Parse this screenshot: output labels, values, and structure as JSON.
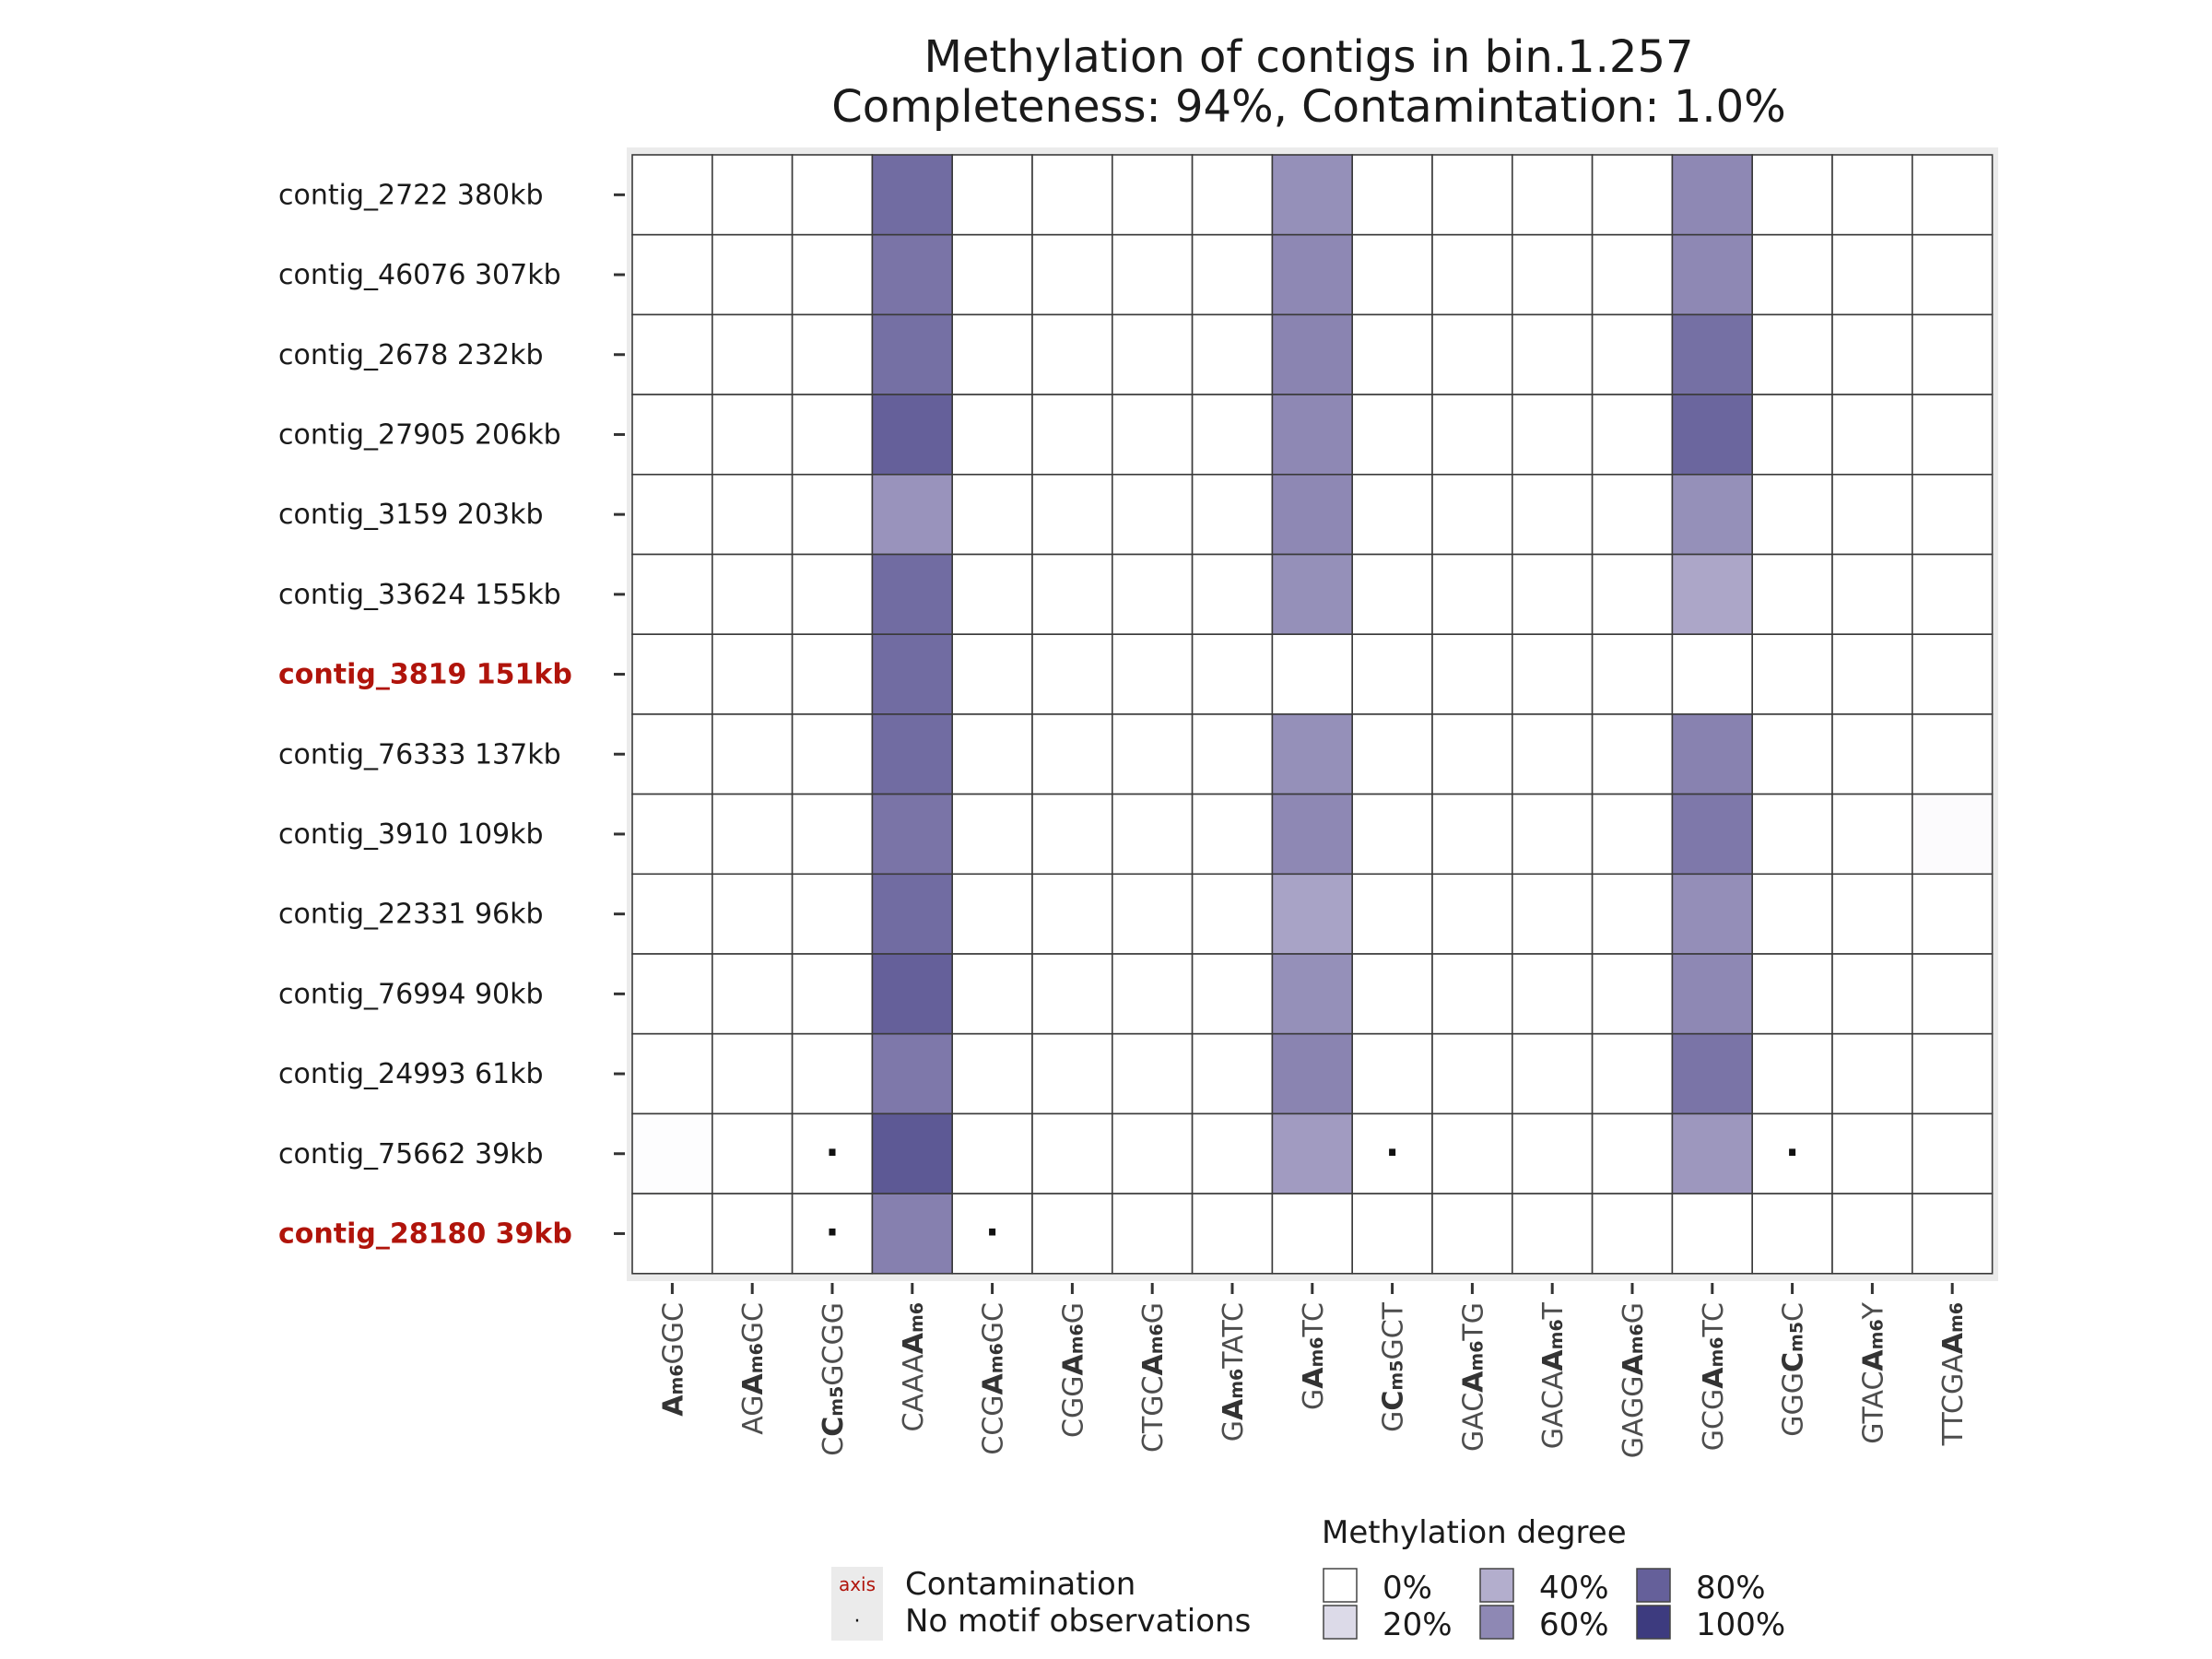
{
  "chart_data": {
    "type": "heatmap",
    "title": "Methylation of contigs in bin.1.257",
    "subtitle": "Completeness:  94%, Contamintation: 1.0%",
    "ylabels": [
      "contig_2722 380kb",
      "contig_46076 307kb",
      "contig_2678 232kb",
      "contig_27905 206kb",
      "contig_3159 203kb",
      "contig_33624 155kb",
      "contig_3819 151kb",
      "contig_76333 137kb",
      "contig_3910 109kb",
      "contig_22331 96kb",
      "contig_76994 90kb",
      "contig_24993 61kb",
      "contig_75662 39kb",
      "contig_28180 39kb"
    ],
    "contaminated_rows": [
      "contig_3819 151kb",
      "contig_28180 39kb"
    ],
    "xlabels": [
      [
        {
          "t": "A",
          "b": true
        },
        {
          "t": "m6",
          "s": true
        },
        {
          "t": "GGC"
        }
      ],
      [
        {
          "t": "AG"
        },
        {
          "t": "A",
          "b": true
        },
        {
          "t": "m6",
          "s": true
        },
        {
          "t": "GC"
        }
      ],
      [
        {
          "t": "C"
        },
        {
          "t": "C",
          "b": true
        },
        {
          "t": "m5",
          "s": true
        },
        {
          "t": "GCGG"
        }
      ],
      [
        {
          "t": "CAAA"
        },
        {
          "t": "A",
          "b": true
        },
        {
          "t": "m6",
          "s": true
        }
      ],
      [
        {
          "t": "CCG"
        },
        {
          "t": "A",
          "b": true
        },
        {
          "t": "m6",
          "s": true
        },
        {
          "t": "GC"
        }
      ],
      [
        {
          "t": "CGG"
        },
        {
          "t": "A",
          "b": true
        },
        {
          "t": "m6",
          "s": true
        },
        {
          "t": "G"
        }
      ],
      [
        {
          "t": "CTGC"
        },
        {
          "t": "A",
          "b": true
        },
        {
          "t": "m6",
          "s": true
        },
        {
          "t": "G"
        }
      ],
      [
        {
          "t": "G"
        },
        {
          "t": "A",
          "b": true
        },
        {
          "t": "m6",
          "s": true
        },
        {
          "t": "TATC"
        }
      ],
      [
        {
          "t": "G"
        },
        {
          "t": "A",
          "b": true
        },
        {
          "t": "m6",
          "s": true
        },
        {
          "t": "TC"
        }
      ],
      [
        {
          "t": "G"
        },
        {
          "t": "C",
          "b": true
        },
        {
          "t": "m5",
          "s": true
        },
        {
          "t": "GCT"
        }
      ],
      [
        {
          "t": "GAC"
        },
        {
          "t": "A",
          "b": true
        },
        {
          "t": "m6",
          "s": true
        },
        {
          "t": "TG"
        }
      ],
      [
        {
          "t": "GACA"
        },
        {
          "t": "A",
          "b": true
        },
        {
          "t": "m6",
          "s": true
        },
        {
          "t": "T"
        }
      ],
      [
        {
          "t": "GAGG"
        },
        {
          "t": "A",
          "b": true
        },
        {
          "t": "m6",
          "s": true
        },
        {
          "t": "G"
        }
      ],
      [
        {
          "t": "GCG"
        },
        {
          "t": "A",
          "b": true
        },
        {
          "t": "m6",
          "s": true
        },
        {
          "t": "TC"
        }
      ],
      [
        {
          "t": "GGG"
        },
        {
          "t": "C",
          "b": true
        },
        {
          "t": "m5",
          "s": true
        },
        {
          "t": "C"
        }
      ],
      [
        {
          "t": "GTAC"
        },
        {
          "t": "A",
          "b": true
        },
        {
          "t": "m6",
          "s": true
        },
        {
          "t": "Y"
        }
      ],
      [
        {
          "t": "TTCGA"
        },
        {
          "t": "A",
          "b": true
        },
        {
          "t": "m6",
          "s": true
        }
      ]
    ],
    "values": [
      [
        0,
        0,
        0,
        74,
        0,
        0,
        0,
        0,
        56,
        0,
        0,
        0,
        0,
        60,
        0,
        0,
        0
      ],
      [
        0,
        0,
        0,
        70,
        0,
        0,
        0,
        0,
        60,
        0,
        0,
        0,
        0,
        60,
        0,
        0,
        0
      ],
      [
        0,
        0,
        0,
        72,
        0,
        0,
        0,
        0,
        62,
        0,
        0,
        0,
        0,
        72,
        0,
        0,
        0
      ],
      [
        0,
        0,
        0,
        80,
        0,
        0,
        0,
        0,
        60,
        0,
        0,
        0,
        0,
        77,
        0,
        0,
        0
      ],
      [
        0,
        0,
        0,
        54,
        0,
        0,
        0,
        0,
        60,
        0,
        0,
        0,
        0,
        56,
        0,
        0,
        0
      ],
      [
        0,
        0,
        0,
        74,
        0,
        0,
        0,
        0,
        56,
        0,
        0,
        0,
        0,
        44,
        0,
        0,
        0
      ],
      [
        0,
        0,
        0,
        74,
        0,
        0,
        0,
        0,
        0,
        0,
        0,
        0,
        0,
        0,
        0,
        0,
        0
      ],
      [
        0,
        0,
        0,
        74,
        0,
        0,
        0,
        0,
        56,
        0,
        0,
        0,
        0,
        63,
        0,
        0,
        0
      ],
      [
        0,
        0,
        0,
        70,
        0,
        0,
        0,
        0,
        60,
        0,
        0,
        0,
        0,
        68,
        0,
        0,
        2
      ],
      [
        0,
        0,
        0,
        74,
        0,
        0,
        0,
        0,
        46,
        0,
        0,
        0,
        0,
        57,
        0,
        0,
        0
      ],
      [
        0,
        0,
        0,
        80,
        0,
        0,
        0,
        0,
        56,
        0,
        0,
        0,
        0,
        60,
        0,
        0,
        0
      ],
      [
        0,
        0,
        0,
        68,
        0,
        0,
        0,
        0,
        62,
        0,
        0,
        0,
        0,
        70,
        0,
        0,
        0
      ],
      [
        1,
        0,
        null,
        84,
        0,
        0,
        0,
        0,
        50,
        null,
        0,
        0,
        0,
        52,
        null,
        0,
        0
      ],
      [
        0,
        0,
        null,
        64,
        null,
        0,
        0,
        0,
        0,
        0,
        0,
        0,
        0,
        0,
        0,
        0,
        0
      ]
    ],
    "no_observation_marker": "·",
    "legend": {
      "title": "Methylation degree",
      "scale": [
        {
          "label": "0%",
          "value": 0,
          "color": "#ffffff"
        },
        {
          "label": "20%",
          "value": 20,
          "color": "#dcdae8"
        },
        {
          "label": "40%",
          "value": 40,
          "color": "#b3aecd"
        },
        {
          "label": "60%",
          "value": 60,
          "color": "#8e88b4"
        },
        {
          "label": "80%",
          "value": 80,
          "color": "#65609a"
        },
        {
          "label": "100%",
          "value": 100,
          "color": "#3d3b7f"
        }
      ],
      "key_items": [
        {
          "symbol": "axis",
          "label": "Contamination"
        },
        {
          "symbol": "·",
          "label": "No motif observations"
        }
      ]
    },
    "colors": {
      "contamination_label": "#b0140b",
      "panel_background": "#ebebeb",
      "grid_line": "#3a3a3a",
      "high": "#3d3b7f"
    }
  }
}
